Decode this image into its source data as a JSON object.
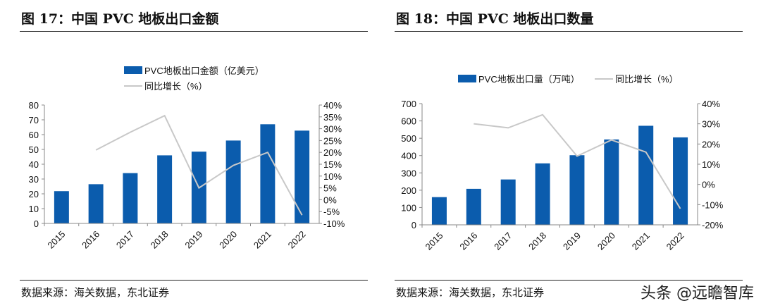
{
  "charts": [
    {
      "figure_title": "图 17：中国 PVC 地板出口金额",
      "source": "数据来源：海关数据，东北证券"
    },
    {
      "figure_title": "图 18：中国 PVC 地板出口数量",
      "source": "数据来源：海关数据，东北证券"
    }
  ],
  "watermark": "头条 @远瞻智库",
  "chart_data": [
    {
      "type": "bar+line",
      "categories": [
        "2015",
        "2016",
        "2017",
        "2018",
        "2019",
        "2020",
        "2021",
        "2022"
      ],
      "series": [
        {
          "name": "PVC地板出口金额（亿美元）",
          "type": "bar",
          "axis": "left",
          "values": [
            21.8,
            26.5,
            34,
            46,
            48.5,
            56,
            67,
            62.7
          ]
        },
        {
          "name": "同比增长（%）",
          "type": "line",
          "axis": "right",
          "values": [
            null,
            21,
            28.5,
            35.5,
            5,
            14.5,
            20,
            -6.5
          ]
        }
      ],
      "ylim": [
        0,
        80
      ],
      "yticks": [
        0,
        10,
        20,
        30,
        40,
        50,
        60,
        70,
        80
      ],
      "y2lim": [
        -10,
        40
      ],
      "y2ticks": [
        -10,
        -5,
        0,
        5,
        10,
        15,
        20,
        25,
        30,
        35,
        40
      ],
      "y2unit": "%",
      "legend": "top",
      "bar_color": "#0b5cad",
      "line_color": "#c8c8c8",
      "grid": false
    },
    {
      "type": "bar+line",
      "categories": [
        "2015",
        "2016",
        "2017",
        "2018",
        "2019",
        "2020",
        "2021",
        "2022"
      ],
      "series": [
        {
          "name": "PVC地板出口量（万吨）",
          "type": "bar",
          "axis": "left",
          "values": [
            160,
            208,
            262,
            355,
            402,
            493,
            572,
            505
          ]
        },
        {
          "name": "同比增长（%）",
          "type": "line",
          "axis": "right",
          "values": [
            null,
            30,
            28,
            34.5,
            14,
            22,
            16,
            -12
          ]
        }
      ],
      "ylim": [
        0,
        700
      ],
      "yticks": [
        0,
        100,
        200,
        300,
        400,
        500,
        600,
        700
      ],
      "y2lim": [
        -20,
        40
      ],
      "y2ticks": [
        -20,
        -10,
        0,
        10,
        20,
        30,
        40
      ],
      "y2unit": "%",
      "legend": "top",
      "bar_color": "#0b5cad",
      "line_color": "#c8c8c8",
      "grid": false
    }
  ]
}
